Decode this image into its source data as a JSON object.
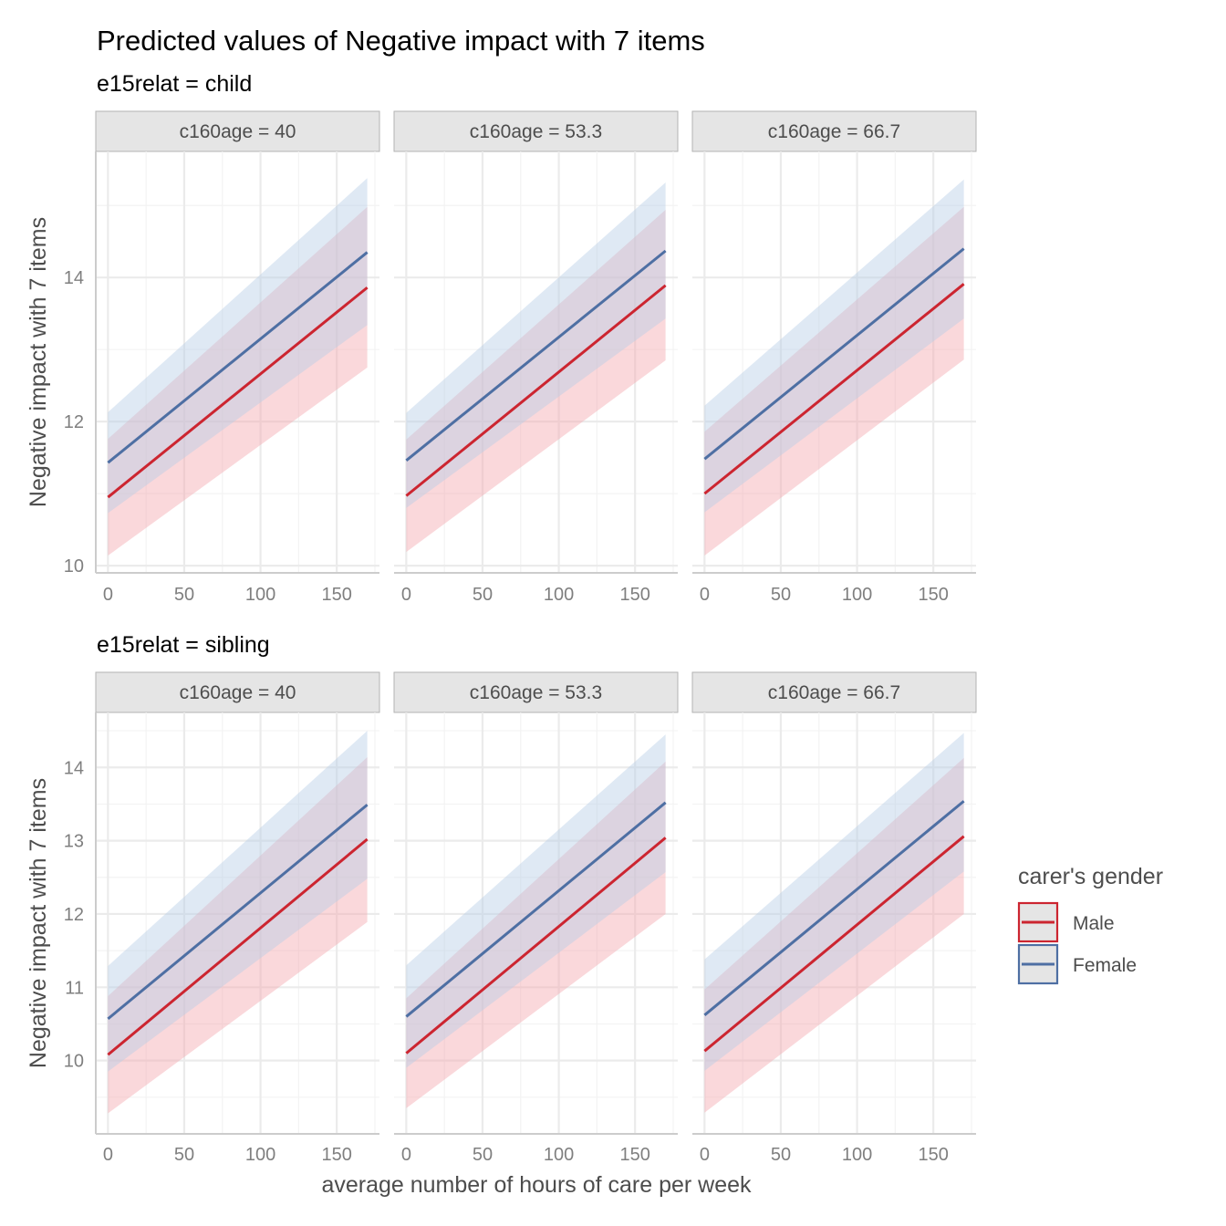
{
  "title": "Predicted values of Negative impact with 7 items",
  "colors": {
    "male": "#CC2530",
    "female": "#4E6FA3",
    "male_ribbon": "#F3A8B0",
    "female_ribbon": "#B9CFE6",
    "strip_fill": "#E5E5E5",
    "strip_border": "#B3B3B3",
    "grid": "#EBEBEB"
  },
  "legend": {
    "title": "carer's gender",
    "items": [
      {
        "label": "Male",
        "color": "#CC2530"
      },
      {
        "label": "Female",
        "color": "#4E6FA3"
      }
    ]
  },
  "chart_data": {
    "type": "line",
    "xlabel": "average number of hours of care per week",
    "ylabel": "Negative impact with 7 items",
    "xlim": [
      -8,
      178
    ],
    "xticks": [
      0,
      50,
      100,
      150
    ],
    "rows": [
      {
        "subtitle": "e15relat = child",
        "ylim": [
          9.9,
          15.75
        ],
        "yticks": [
          10,
          12,
          14
        ],
        "panels": [
          {
            "strip": "c160age = 40",
            "series": [
              {
                "name": "Male",
                "x": [
                  0,
                  170
                ],
                "y": [
                  10.95,
                  13.86
                ],
                "lower": [
                  10.14,
                  12.75
                ],
                "upper": [
                  11.76,
                  14.98
                ]
              },
              {
                "name": "Female",
                "x": [
                  0,
                  170
                ],
                "y": [
                  11.43,
                  14.35
                ],
                "lower": [
                  10.73,
                  13.34
                ],
                "upper": [
                  12.13,
                  15.38
                ]
              }
            ]
          },
          {
            "strip": "c160age = 53.3",
            "series": [
              {
                "name": "Male",
                "x": [
                  0,
                  170
                ],
                "y": [
                  10.97,
                  13.89
                ],
                "lower": [
                  10.19,
                  12.85
                ],
                "upper": [
                  11.75,
                  14.94
                ]
              },
              {
                "name": "Female",
                "x": [
                  0,
                  170
                ],
                "y": [
                  11.46,
                  14.37
                ],
                "lower": [
                  10.8,
                  13.43
                ],
                "upper": [
                  12.12,
                  15.32
                ]
              }
            ]
          },
          {
            "strip": "c160age = 66.7",
            "series": [
              {
                "name": "Male",
                "x": [
                  0,
                  170
                ],
                "y": [
                  11.0,
                  13.91
                ],
                "lower": [
                  10.14,
                  12.86
                ],
                "upper": [
                  11.86,
                  14.98
                ]
              },
              {
                "name": "Female",
                "x": [
                  0,
                  170
                ],
                "y": [
                  11.48,
                  14.4
                ],
                "lower": [
                  10.74,
                  13.43
                ],
                "upper": [
                  12.22,
                  15.36
                ]
              }
            ]
          }
        ]
      },
      {
        "subtitle": "e15relat = sibling",
        "ylim": [
          9.0,
          14.75
        ],
        "yticks": [
          10,
          11,
          12,
          13,
          14
        ],
        "panels": [
          {
            "strip": "c160age = 40",
            "series": [
              {
                "name": "Male",
                "x": [
                  0,
                  170
                ],
                "y": [
                  10.08,
                  13.02
                ],
                "lower": [
                  9.28,
                  11.89
                ],
                "upper": [
                  10.88,
                  14.14
                ]
              },
              {
                "name": "Female",
                "x": [
                  0,
                  170
                ],
                "y": [
                  10.57,
                  13.49
                ],
                "lower": [
                  9.85,
                  12.48
                ],
                "upper": [
                  11.29,
                  14.5
                ]
              }
            ]
          },
          {
            "strip": "c160age = 53.3",
            "series": [
              {
                "name": "Male",
                "x": [
                  0,
                  170
                ],
                "y": [
                  10.1,
                  13.04
                ],
                "lower": [
                  9.35,
                  12.0
                ],
                "upper": [
                  10.85,
                  14.08
                ]
              },
              {
                "name": "Female",
                "x": [
                  0,
                  170
                ],
                "y": [
                  10.6,
                  13.52
                ],
                "lower": [
                  9.9,
                  12.57
                ],
                "upper": [
                  11.3,
                  14.45
                ]
              }
            ]
          },
          {
            "strip": "c160age = 66.7",
            "series": [
              {
                "name": "Male",
                "x": [
                  0,
                  170
                ],
                "y": [
                  10.13,
                  13.06
                ],
                "lower": [
                  9.29,
                  12.0
                ],
                "upper": [
                  10.97,
                  14.13
                ]
              },
              {
                "name": "Female",
                "x": [
                  0,
                  170
                ],
                "y": [
                  10.62,
                  13.54
                ],
                "lower": [
                  9.86,
                  12.58
                ],
                "upper": [
                  11.38,
                  14.47
                ]
              }
            ]
          }
        ]
      }
    ]
  }
}
